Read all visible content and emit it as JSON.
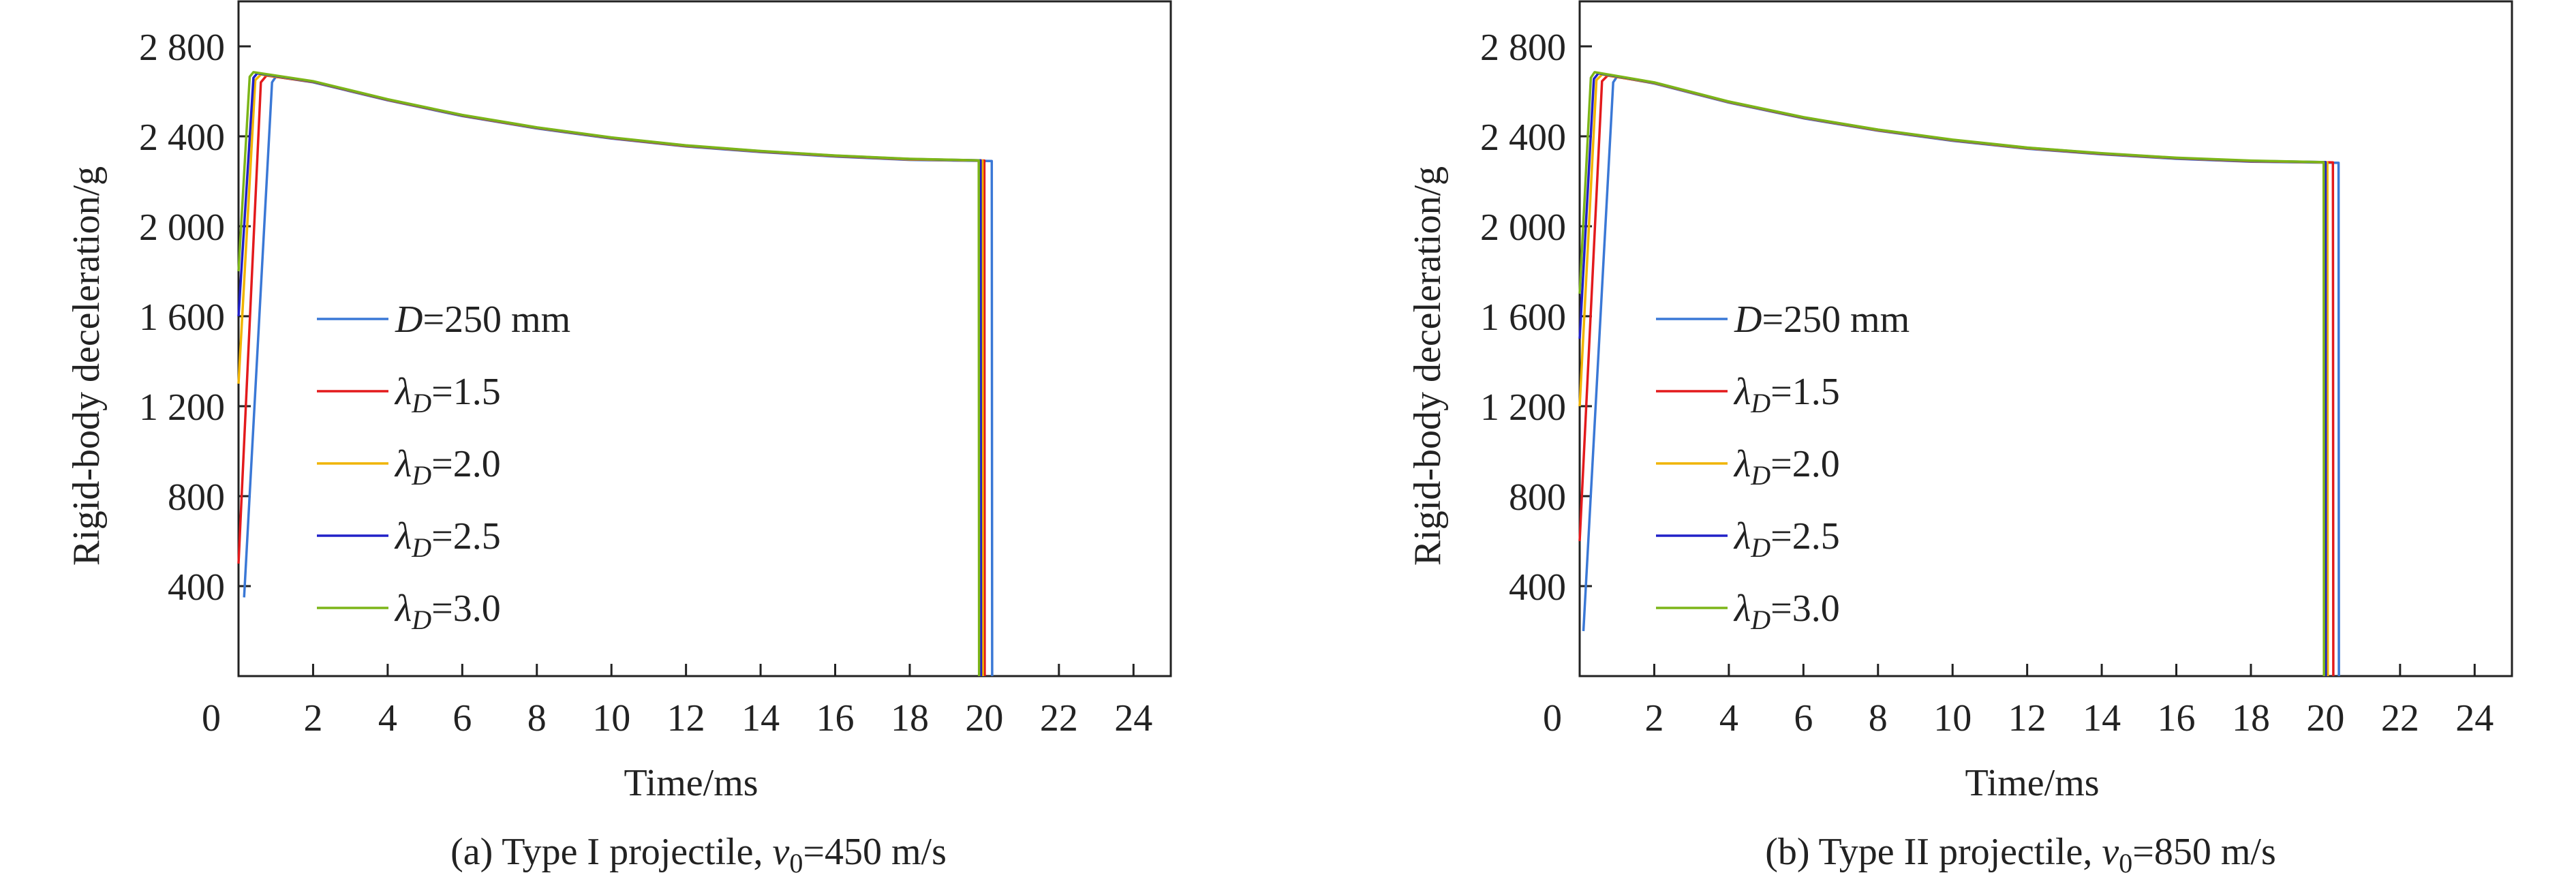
{
  "figure": {
    "colors": {
      "D=250mm": "#3a78d6",
      "lambda1.5": "#e31a1c",
      "lambda2.0": "#f0b400",
      "lambda2.5": "#2020c8",
      "lambda3.0": "#7cb518"
    }
  },
  "chart_data": [
    {
      "type": "line",
      "caption": {
        "prefix": "(a) Type I projectile, ",
        "var": "v",
        "sub": "0",
        "suffix": "=450 m/s"
      },
      "xlabel": "Time/ms",
      "ylabel": "Rigid-body deceleration/g",
      "xlim": [
        0,
        25
      ],
      "ylim": [
        0,
        3000
      ],
      "xticks": [
        0,
        2,
        4,
        6,
        8,
        10,
        12,
        14,
        16,
        18,
        20,
        22,
        24
      ],
      "xtick_labels": [
        "0",
        "2",
        "4",
        "6",
        "8",
        "10",
        "12",
        "14",
        "16",
        "18",
        "20",
        "22",
        "24"
      ],
      "yticks": [
        400,
        800,
        1200,
        1600,
        2000,
        2400,
        2800
      ],
      "ytick_labels": [
        "400",
        "800",
        "1 200",
        "1 600",
        "2 000",
        "2 400",
        "2 800"
      ],
      "legend_position": "center-left",
      "series": [
        {
          "name": "D=250 mm",
          "label": {
            "var": "D",
            "rest": "=250 mm"
          },
          "color_key": "D=250mm",
          "x": [
            0.15,
            0.9,
            1.0,
            2,
            4,
            6,
            8,
            10,
            12,
            14,
            16,
            18,
            20.2,
            20.21
          ],
          "y": [
            350,
            2640,
            2665,
            2640,
            2560,
            2490,
            2435,
            2390,
            2355,
            2330,
            2310,
            2295,
            2290,
            0
          ]
        },
        {
          "name": "λD=1.5",
          "label": {
            "var": "λ",
            "sub": "D",
            "rest": "=1.5"
          },
          "color_key": "lambda1.5",
          "x": [
            0.0,
            0.6,
            0.75,
            2,
            4,
            6,
            8,
            10,
            12,
            14,
            16,
            18,
            20.0,
            20.01
          ],
          "y": [
            500,
            2640,
            2670,
            2642,
            2562,
            2492,
            2437,
            2392,
            2357,
            2332,
            2312,
            2297,
            2292,
            0
          ]
        },
        {
          "name": "λD=2.0",
          "label": {
            "var": "λ",
            "sub": "D",
            "rest": "=2.0"
          },
          "color_key": "lambda2.0",
          "x": [
            0.0,
            0.45,
            0.6,
            2,
            4,
            6,
            8,
            10,
            12,
            14,
            16,
            18,
            19.95,
            19.96
          ],
          "y": [
            1300,
            2650,
            2675,
            2643,
            2563,
            2493,
            2438,
            2393,
            2358,
            2333,
            2313,
            2298,
            2292,
            0
          ]
        },
        {
          "name": "λD=2.5",
          "label": {
            "var": "λ",
            "sub": "D",
            "rest": "=2.5"
          },
          "color_key": "lambda2.5",
          "x": [
            0.0,
            0.4,
            0.5,
            2,
            4,
            6,
            8,
            10,
            12,
            14,
            16,
            18,
            19.9,
            19.91
          ],
          "y": [
            1600,
            2660,
            2680,
            2644,
            2564,
            2494,
            2439,
            2394,
            2359,
            2334,
            2314,
            2299,
            2293,
            0
          ]
        },
        {
          "name": "λD=3.0",
          "label": {
            "var": "λ",
            "sub": "D",
            "rest": "=3.0"
          },
          "color_key": "lambda3.0",
          "x": [
            0.0,
            0.3,
            0.4,
            2,
            4,
            6,
            8,
            10,
            12,
            14,
            16,
            18,
            19.85,
            19.86
          ],
          "y": [
            1800,
            2665,
            2685,
            2645,
            2565,
            2495,
            2440,
            2395,
            2360,
            2335,
            2315,
            2300,
            2293,
            0
          ]
        }
      ]
    },
    {
      "type": "line",
      "caption": {
        "prefix": "(b) Type II projectile, ",
        "var": "v",
        "sub": "0",
        "suffix": "=850 m/s"
      },
      "xlabel": "Time/ms",
      "ylabel": "Rigid-body deceleration/g",
      "xlim": [
        0,
        25
      ],
      "ylim": [
        0,
        3000
      ],
      "xticks": [
        0,
        2,
        4,
        6,
        8,
        10,
        12,
        14,
        16,
        18,
        20,
        22,
        24
      ],
      "xtick_labels": [
        "0",
        "2",
        "4",
        "6",
        "8",
        "10",
        "12",
        "14",
        "16",
        "18",
        "20",
        "22",
        "24"
      ],
      "yticks": [
        400,
        800,
        1200,
        1600,
        2000,
        2400,
        2800
      ],
      "ytick_labels": [
        "400",
        "800",
        "1 200",
        "1 600",
        "2 000",
        "2 400",
        "2 800"
      ],
      "legend_position": "center-left",
      "series": [
        {
          "name": "D=250 mm",
          "label": {
            "var": "D",
            "rest": "=250 mm"
          },
          "color_key": "D=250mm",
          "x": [
            0.1,
            0.9,
            1.0,
            2,
            4,
            6,
            8,
            10,
            12,
            14,
            16,
            18,
            20.35,
            20.36
          ],
          "y": [
            200,
            2640,
            2665,
            2635,
            2550,
            2480,
            2425,
            2380,
            2345,
            2320,
            2300,
            2287,
            2282,
            0
          ]
        },
        {
          "name": "λD=1.5",
          "label": {
            "var": "λ",
            "sub": "D",
            "rest": "=1.5"
          },
          "color_key": "lambda1.5",
          "x": [
            0.0,
            0.6,
            0.75,
            2,
            4,
            6,
            8,
            10,
            12,
            14,
            16,
            18,
            20.2,
            20.21
          ],
          "y": [
            600,
            2645,
            2670,
            2637,
            2552,
            2482,
            2427,
            2382,
            2347,
            2322,
            2302,
            2289,
            2284,
            0
          ]
        },
        {
          "name": "λD=2.0",
          "label": {
            "var": "λ",
            "sub": "D",
            "rest": "=2.0"
          },
          "color_key": "lambda2.0",
          "x": [
            0.0,
            0.45,
            0.6,
            2,
            4,
            6,
            8,
            10,
            12,
            14,
            16,
            18,
            20.05,
            20.06
          ],
          "y": [
            1200,
            2650,
            2675,
            2638,
            2553,
            2483,
            2428,
            2383,
            2348,
            2323,
            2303,
            2290,
            2284,
            0
          ]
        },
        {
          "name": "λD=2.5",
          "label": {
            "var": "λ",
            "sub": "D",
            "rest": "=2.5"
          },
          "color_key": "lambda2.5",
          "x": [
            0.0,
            0.38,
            0.5,
            2,
            4,
            6,
            8,
            10,
            12,
            14,
            16,
            18,
            20.0,
            20.01
          ],
          "y": [
            1500,
            2655,
            2680,
            2639,
            2554,
            2484,
            2429,
            2384,
            2349,
            2324,
            2304,
            2291,
            2285,
            0
          ]
        },
        {
          "name": "λD=3.0",
          "label": {
            "var": "λ",
            "sub": "D",
            "rest": "=3.0"
          },
          "color_key": "lambda3.0",
          "x": [
            0.0,
            0.3,
            0.4,
            2,
            4,
            6,
            8,
            10,
            12,
            14,
            16,
            18,
            19.95,
            19.96
          ],
          "y": [
            1700,
            2660,
            2685,
            2640,
            2555,
            2485,
            2430,
            2385,
            2350,
            2325,
            2305,
            2292,
            2285,
            0
          ]
        }
      ]
    }
  ]
}
